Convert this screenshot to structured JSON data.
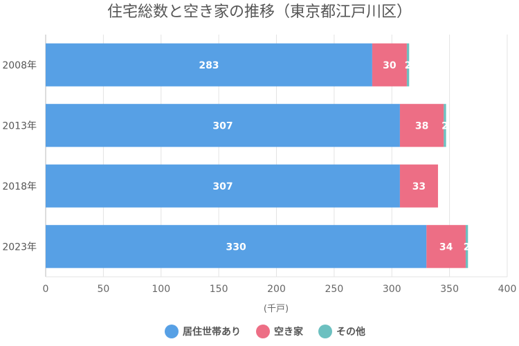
{
  "chart_data": {
    "type": "bar",
    "orientation": "horizontal",
    "stacked": true,
    "title": "住宅総数と空き家の推移（東京都江戸川区）",
    "xlabel": "(千戸)",
    "ylabel": "",
    "xlim": [
      0,
      400
    ],
    "xticks": [
      "0",
      "50",
      "100",
      "150",
      "200",
      "250",
      "300",
      "350",
      "400"
    ],
    "categories": [
      "2008年",
      "2013年",
      "2018年",
      "2023年"
    ],
    "series": [
      {
        "name": "居住世帯あり",
        "color": "#57a0e5",
        "values": [
          283,
          307,
          307,
          330
        ],
        "labels": [
          "283",
          "307",
          "307",
          "330"
        ]
      },
      {
        "name": "空き家",
        "color": "#ed6e85",
        "values": [
          30,
          38,
          33,
          34
        ],
        "labels": [
          "30",
          "38",
          "33",
          "34"
        ]
      },
      {
        "name": "その他",
        "color": "#6cc0c0",
        "values": [
          2,
          2,
          0,
          2
        ],
        "labels": [
          "2",
          "2",
          "",
          "2"
        ]
      }
    ],
    "grid": true,
    "legend": "bottom"
  }
}
